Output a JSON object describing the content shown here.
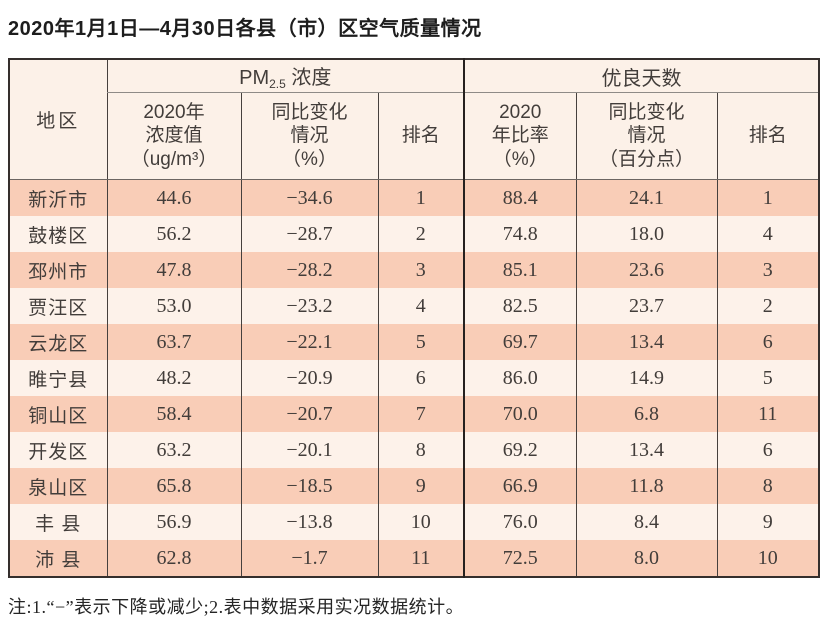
{
  "title": "2020年1月1日—4月30日各县（市）区空气质量情况",
  "note": "注:1.“−”表示下降或减少;2.表中数据采用实况数据统计。",
  "colors": {
    "row_stripe_dark": "#f9cdb7",
    "row_stripe_light": "#fdf2ea",
    "header_bg": "#fcf1e8",
    "outer_border": "#352f2d",
    "section_divider": "#26211f",
    "text": "#423d3a"
  },
  "table": {
    "corner_header": "地区",
    "group1": {
      "prefix": "PM",
      "subscript": "2.5",
      "suffix": " 浓度"
    },
    "group2": "优良天数",
    "subheaders": [
      "2020年\n浓度值\n（ug/m³）",
      "同比变化\n情况\n（%）",
      "排名",
      "2020\n年比率\n（%）",
      "同比变化\n情况\n（百分点）",
      "排名"
    ],
    "rows": [
      [
        "新沂市",
        "44.6",
        "−34.6",
        "1",
        "88.4",
        "24.1",
        "1"
      ],
      [
        "鼓楼区",
        "56.2",
        "−28.7",
        "2",
        "74.8",
        "18.0",
        "4"
      ],
      [
        "邳州市",
        "47.8",
        "−28.2",
        "3",
        "85.1",
        "23.6",
        "3"
      ],
      [
        "贾汪区",
        "53.0",
        "−23.2",
        "4",
        "82.5",
        "23.7",
        "2"
      ],
      [
        "云龙区",
        "63.7",
        "−22.1",
        "5",
        "69.7",
        "13.4",
        "6"
      ],
      [
        "睢宁县",
        "48.2",
        "−20.9",
        "6",
        "86.0",
        "14.9",
        "5"
      ],
      [
        "铜山区",
        "58.4",
        "−20.7",
        "7",
        "70.0",
        "6.8",
        "11"
      ],
      [
        "开发区",
        "63.2",
        "−20.1",
        "8",
        "69.2",
        "13.4",
        "6"
      ],
      [
        "泉山区",
        "65.8",
        "−18.5",
        "9",
        "66.9",
        "11.8",
        "8"
      ],
      [
        "丰 县",
        "56.9",
        "−13.8",
        "10",
        "76.0",
        "8.4",
        "9"
      ],
      [
        "沛 县",
        "62.8",
        "−1.7",
        "11",
        "72.5",
        "8.0",
        "10"
      ]
    ]
  },
  "chart_data": {
    "type": "table",
    "title": "2020年1月1日—4月30日各县（市）区空气质量情况",
    "columns": [
      "地区",
      "PM2.5浓度 2020年浓度值（ug/m³）",
      "PM2.5浓度 同比变化情况（%）",
      "PM2.5浓度 排名",
      "优良天数 2020年比率（%）",
      "优良天数 同比变化情况（百分点）",
      "优良天数 排名"
    ],
    "rows": [
      [
        "新沂市",
        44.6,
        -34.6,
        1,
        88.4,
        24.1,
        1
      ],
      [
        "鼓楼区",
        56.2,
        -28.7,
        2,
        74.8,
        18.0,
        4
      ],
      [
        "邳州市",
        47.8,
        -28.2,
        3,
        85.1,
        23.6,
        3
      ],
      [
        "贾汪区",
        53.0,
        -23.2,
        4,
        82.5,
        23.7,
        2
      ],
      [
        "云龙区",
        63.7,
        -22.1,
        5,
        69.7,
        13.4,
        6
      ],
      [
        "睢宁县",
        48.2,
        -20.9,
        6,
        86.0,
        14.9,
        5
      ],
      [
        "铜山区",
        58.4,
        -20.7,
        7,
        70.0,
        6.8,
        11
      ],
      [
        "开发区",
        63.2,
        -20.1,
        8,
        69.2,
        13.4,
        6
      ],
      [
        "泉山区",
        65.8,
        -18.5,
        9,
        66.9,
        11.8,
        8
      ],
      [
        "丰县",
        56.9,
        -13.8,
        10,
        76.0,
        8.4,
        9
      ],
      [
        "沛县",
        62.8,
        -1.7,
        11,
        72.5,
        8.0,
        10
      ]
    ],
    "note": "注:1.“−”表示下降或减少;2.表中数据采用实况数据统计。"
  }
}
